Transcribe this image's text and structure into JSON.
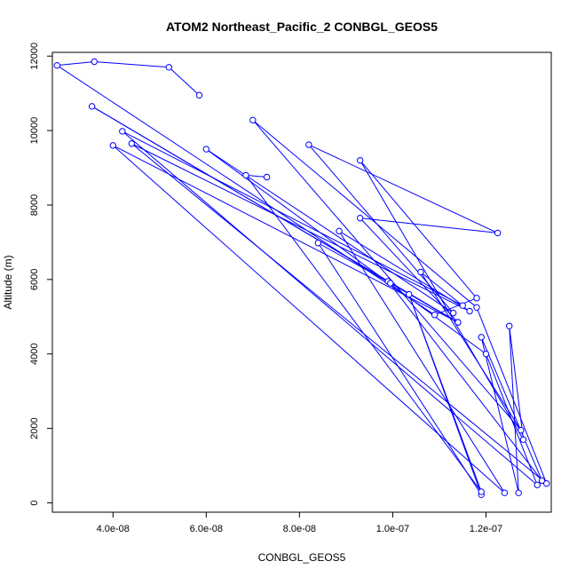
{
  "chart_data": {
    "type": "scatter",
    "title": "ATOM2 Northeast_Pacific_2 CONBGL_GEOS5",
    "xlabel": "CONBGL_GEOS5",
    "ylabel": "Altitude (m)",
    "xlim": [
      2.7e-08,
      1.34e-07
    ],
    "ylim": [
      -250,
      12100
    ],
    "xticks": [
      {
        "value": 4e-08,
        "label": "4.0e-08"
      },
      {
        "value": 6e-08,
        "label": "6.0e-08"
      },
      {
        "value": 8e-08,
        "label": "8.0e-08"
      },
      {
        "value": 1e-07,
        "label": "1.0e-07"
      },
      {
        "value": 1.2e-07,
        "label": "1.2e-07"
      }
    ],
    "yticks": [
      {
        "value": 0,
        "label": "0"
      },
      {
        "value": 2000,
        "label": "2000"
      },
      {
        "value": 4000,
        "label": "4000"
      },
      {
        "value": 6000,
        "label": "6000"
      },
      {
        "value": 8000,
        "label": "8000"
      },
      {
        "value": 10000,
        "label": "10000"
      },
      {
        "value": 12000,
        "label": "12000"
      }
    ],
    "grid": false,
    "legend": "none",
    "line_style": "points connected by lines (type b)",
    "colors": {
      "series": "#0000ff",
      "axis": "#000000"
    },
    "series": [
      {
        "points": [
          [
            5.85e-08,
            10950
          ],
          [
            5.2e-08,
            11700
          ],
          [
            3.6e-08,
            11850
          ],
          [
            2.8e-08,
            11750
          ],
          [
            1.09e-07,
            5050
          ],
          [
            1.18e-07,
            5500
          ],
          [
            9.3e-08,
            9200
          ],
          [
            1.28e-07,
            1700
          ],
          [
            1.25e-07,
            4750
          ],
          [
            1.27e-07,
            270
          ],
          [
            1.19e-07,
            4450
          ],
          [
            1.32e-07,
            600
          ],
          [
            9.9e-08,
            5950
          ],
          [
            3.55e-08,
            10650
          ],
          [
            1.14e-07,
            4850
          ],
          [
            9.3e-08,
            7650
          ],
          [
            1.225e-07,
            7250
          ],
          [
            8.2e-08,
            9620
          ],
          [
            1.13e-07,
            5100
          ],
          [
            6e-08,
            9500
          ],
          [
            1.2e-07,
            4000
          ],
          [
            1.31e-07,
            480
          ],
          [
            4.2e-08,
            9980
          ],
          [
            1.15e-07,
            5300
          ],
          [
            1.06e-07,
            6200
          ],
          [
            1.275e-07,
            1950
          ],
          [
            7e-08,
            10280
          ],
          [
            1.18e-07,
            5250
          ],
          [
            1.33e-07,
            520
          ],
          [
            4.4e-08,
            9650
          ],
          [
            1.165e-07,
            5150
          ],
          [
            8.85e-08,
            7300
          ],
          [
            1.24e-07,
            270
          ],
          [
            4e-08,
            9600
          ],
          [
            1.14e-07,
            4850
          ],
          [
            9.95e-08,
            5900
          ],
          [
            8.4e-08,
            6980
          ],
          [
            1.19e-07,
            220
          ],
          [
            1.035e-07,
            5600
          ],
          [
            1.19e-07,
            300
          ],
          [
            6.85e-08,
            8800
          ],
          [
            7.3e-08,
            8750
          ]
        ]
      }
    ]
  }
}
